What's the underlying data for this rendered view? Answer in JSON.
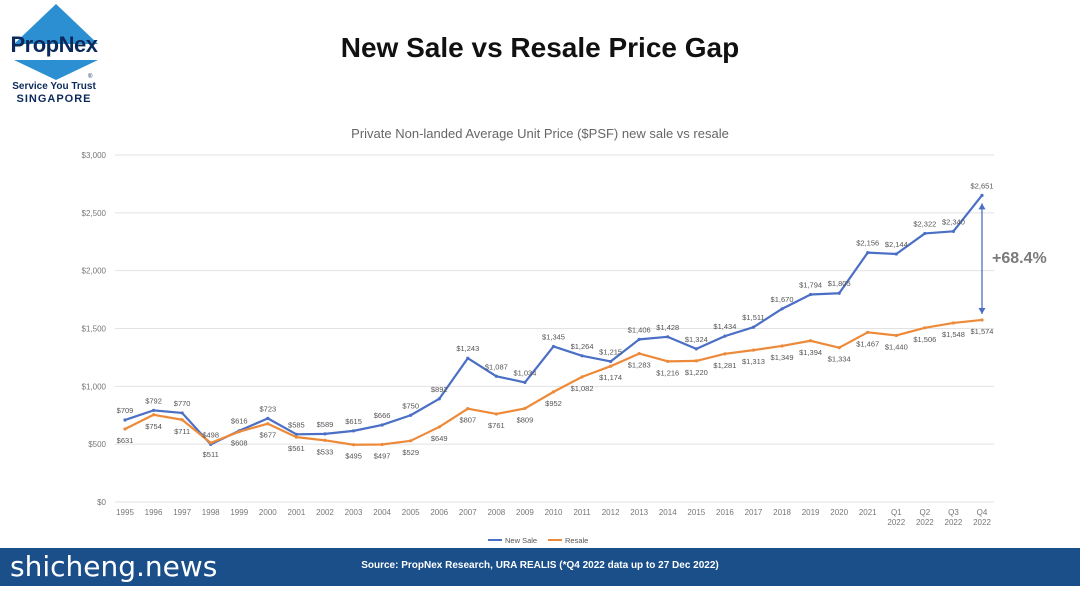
{
  "logo": {
    "brand": "PropNex",
    "tagline": "Service You Trust",
    "country": "SINGAPORE",
    "mark": "®"
  },
  "title": "New Sale vs Resale Price Gap",
  "gap_annotation": "+68.4%",
  "footer": {
    "source": "Source: PropNex Research, URA REALIS (*Q4 2022 data up to 27 Dec 2022)",
    "watermark": "shicheng.news"
  },
  "colors": {
    "new_sale": "#4a6fc4",
    "resale": "#ed8a3a",
    "logo_blue": "#2b8fd1",
    "footer": "#1a4f8a"
  },
  "chart_data": {
    "type": "line",
    "title": "Private Non-landed Average Unit Price ($PSF) new sale vs resale",
    "categories": [
      "1995",
      "1996",
      "1997",
      "1998",
      "1999",
      "2000",
      "2001",
      "2002",
      "2003",
      "2004",
      "2005",
      "2006",
      "2007",
      "2008",
      "2009",
      "2010",
      "2011",
      "2012",
      "2013",
      "2014",
      "2015",
      "2016",
      "2017",
      "2018",
      "2019",
      "2020",
      "2021",
      "Q1\n2022",
      "Q2\n2022",
      "Q3\n2022",
      "Q4\n2022"
    ],
    "series": [
      {
        "name": "New Sale",
        "values": [
          709,
          792,
          770,
          498,
          616,
          723,
          585,
          589,
          615,
          666,
          750,
          892,
          1243,
          1087,
          1034,
          1345,
          1264,
          1215,
          1406,
          1428,
          1324,
          1434,
          1511,
          1670,
          1794,
          1805,
          2156,
          2144,
          2322,
          2340,
          2651
        ],
        "labels": [
          "$709",
          "$792",
          "$770",
          "$498",
          "$616",
          "$723",
          "$585",
          "$589",
          "$615",
          "$666",
          "$750",
          "$892",
          "$1,243",
          "$1,087",
          "$1,034",
          "$1,345",
          "$1,264",
          "$1,215",
          "$1,406",
          "$1,428",
          "$1,324",
          "$1,434",
          "$1,511",
          "$1,670",
          "$1,794",
          "$1,805",
          "$2,156",
          "$2,144",
          "$2,322",
          "$2,340",
          "$2,651"
        ]
      },
      {
        "name": "Resale",
        "values": [
          631,
          754,
          711,
          511,
          608,
          677,
          561,
          533,
          495,
          497,
          529,
          649,
          807,
          761,
          809,
          952,
          1082,
          1174,
          1283,
          1216,
          1220,
          1281,
          1313,
          1349,
          1394,
          1334,
          1467,
          1440,
          1506,
          1548,
          1574
        ],
        "labels": [
          "$631",
          "$754",
          "$711",
          "$511",
          "$608",
          "$677",
          "$561",
          "$533",
          "$495",
          "$497",
          "$529",
          "$649",
          "$807",
          "$761",
          "$809",
          "$952",
          "$1,082",
          "$1,174",
          "$1,283",
          "$1,216",
          "$1,220",
          "$1,281",
          "$1,313",
          "$1,349",
          "$1,394",
          "$1,334",
          "$1,467",
          "$1,440",
          "$1,506",
          "$1,548",
          "$1,574"
        ]
      }
    ],
    "yticks": [
      "$0",
      "$500",
      "$1,000",
      "$1,500",
      "$2,000",
      "$2,500",
      "$3,000"
    ],
    "ylim": [
      0,
      3000
    ],
    "grid": true,
    "legend": "bottom-center"
  }
}
